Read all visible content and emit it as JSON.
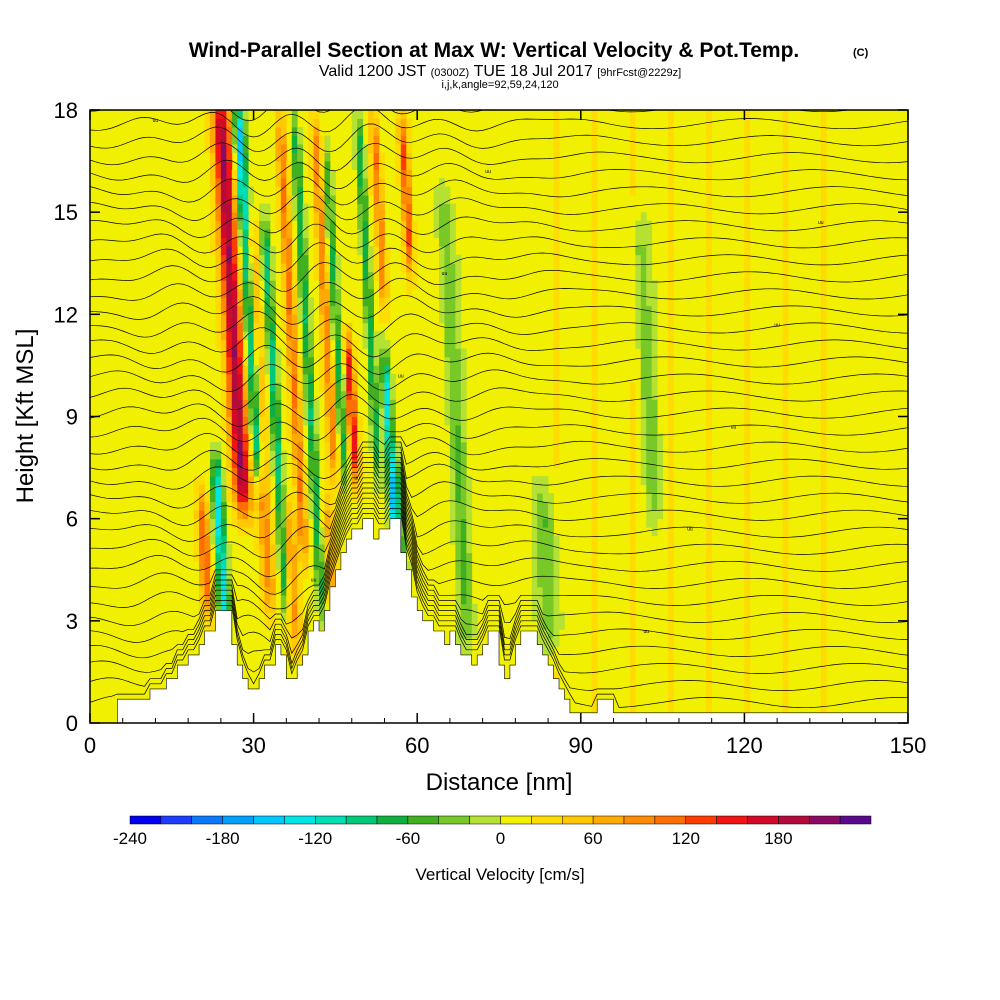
{
  "chart_data": {
    "type": "heatmap",
    "title": "Wind-Parallel Section at Max W: Vertical Velocity & Pot.Temp.",
    "title_mark": "(C)",
    "subtitle_parts": [
      "Valid 1200 JST",
      "(0300Z)",
      "TUE 18 Jul 2017",
      "[9hrFcst@2229z]"
    ],
    "subtitle2": "i,j,k,angle=92,59,24,120",
    "xlabel": "Distance [nm]",
    "ylabel": "Height [Kft MSL]",
    "xlim": [
      0,
      150
    ],
    "ylim": [
      0,
      18
    ],
    "xticks": [
      0,
      30,
      60,
      90,
      120,
      150
    ],
    "yticks": [
      0,
      3,
      6,
      9,
      12,
      15,
      18
    ],
    "colorbar": {
      "label": "Vertical Velocity [cm/s]",
      "ticks": [
        -240,
        -180,
        -120,
        -60,
        0,
        60,
        120,
        180
      ],
      "levels": [
        -240,
        -220,
        -200,
        -180,
        -160,
        -140,
        -120,
        -100,
        -80,
        -60,
        -40,
        -20,
        0,
        20,
        40,
        60,
        80,
        100,
        120,
        140,
        160,
        180,
        200,
        220
      ],
      "colors": [
        "#0000f0",
        "#1e3cff",
        "#0a78ff",
        "#00a0ff",
        "#00c8ff",
        "#00e6e6",
        "#00dcb4",
        "#00c878",
        "#10b040",
        "#40b020",
        "#78c828",
        "#b4e132",
        "#f0f000",
        "#ffdc00",
        "#ffc800",
        "#ffaa00",
        "#ff8c00",
        "#ff6e00",
        "#ff3c00",
        "#f01414",
        "#d20a28",
        "#b40a3c",
        "#8c0a64",
        "#5a0a8c"
      ]
    },
    "updrafts": [
      {
        "x": 26,
        "z_bottom": 6.0,
        "z_top": 18.5,
        "width": 1.6,
        "peak": 190
      },
      {
        "x": 21,
        "z_bottom": 3.0,
        "z_top": 7.0,
        "width": 1.0,
        "peak": 110
      },
      {
        "x": 31,
        "z_bottom": 3.0,
        "z_top": 15.0,
        "width": 1.2,
        "peak": 80
      },
      {
        "x": 37,
        "z_bottom": 4.5,
        "z_top": 18.0,
        "width": 0.9,
        "peak": 90
      },
      {
        "x": 43,
        "z_bottom": 7.0,
        "z_top": 18.0,
        "width": 0.9,
        "peak": 80
      },
      {
        "x": 48,
        "z_bottom": 7.0,
        "z_top": 11.5,
        "width": 0.8,
        "peak": 150
      },
      {
        "x": 53,
        "z_bottom": 12.0,
        "z_top": 18.0,
        "width": 0.8,
        "peak": 90
      },
      {
        "x": 58,
        "z_bottom": 13.0,
        "z_top": 18.0,
        "width": 0.8,
        "peak": 110
      },
      {
        "x": 37,
        "z_bottom": 2.0,
        "z_top": 6.5,
        "width": 1.2,
        "peak": 70
      },
      {
        "x": 44,
        "z_bottom": 3.0,
        "z_top": 7.0,
        "width": 1.2,
        "peak": 50
      }
    ],
    "downdrafts": [
      {
        "x": 24,
        "z_bottom": 2.0,
        "z_top": 8.0,
        "width": 1.0,
        "peak": -150
      },
      {
        "x": 29,
        "z_bottom": 7.0,
        "z_top": 18.5,
        "width": 1.0,
        "peak": -160
      },
      {
        "x": 34,
        "z_bottom": 3.0,
        "z_top": 15.0,
        "width": 0.8,
        "peak": -100
      },
      {
        "x": 40,
        "z_bottom": 3.0,
        "z_top": 18.0,
        "width": 0.8,
        "peak": -90
      },
      {
        "x": 45,
        "z_bottom": 7.0,
        "z_top": 17.0,
        "width": 0.8,
        "peak": -80
      },
      {
        "x": 51,
        "z_bottom": 7.0,
        "z_top": 18.0,
        "width": 0.8,
        "peak": -90
      },
      {
        "x": 55,
        "z_bottom": 5.0,
        "z_top": 11.0,
        "width": 0.8,
        "peak": -140
      },
      {
        "x": 57,
        "z_bottom": 3.0,
        "z_top": 8.0,
        "width": 1.0,
        "peak": -70
      },
      {
        "x": 67,
        "z_bottom": 2.0,
        "z_top": 16.0,
        "width": 1.5,
        "peak": -50
      },
      {
        "x": 84,
        "z_bottom": 2.0,
        "z_top": 7.0,
        "width": 2.0,
        "peak": -50
      },
      {
        "x": 102,
        "z_bottom": 6.0,
        "z_top": 15.0,
        "width": 1.5,
        "peak": -40
      }
    ],
    "terrain": [
      [
        0,
        0
      ],
      [
        5,
        0
      ],
      [
        5,
        0.7
      ],
      [
        11,
        0.7
      ],
      [
        11,
        1.0
      ],
      [
        14,
        1.0
      ],
      [
        14,
        1.3
      ],
      [
        16,
        1.3
      ],
      [
        16,
        1.7
      ],
      [
        18,
        1.7
      ],
      [
        18,
        2.0
      ],
      [
        20,
        2.0
      ],
      [
        20,
        2.3
      ],
      [
        21,
        2.3
      ],
      [
        21,
        2.7
      ],
      [
        23,
        2.7
      ],
      [
        23,
        3.3
      ],
      [
        26,
        3.3
      ],
      [
        26,
        2.3
      ],
      [
        27,
        2.3
      ],
      [
        27,
        1.7
      ],
      [
        28,
        1.7
      ],
      [
        28,
        1.3
      ],
      [
        29,
        1.3
      ],
      [
        29,
        1.0
      ],
      [
        31,
        1.0
      ],
      [
        31,
        1.3
      ],
      [
        32,
        1.3
      ],
      [
        32,
        1.7
      ],
      [
        34,
        1.7
      ],
      [
        34,
        2.3
      ],
      [
        35,
        2.3
      ],
      [
        35,
        2.0
      ],
      [
        36,
        2.0
      ],
      [
        36,
        1.3
      ],
      [
        38,
        1.3
      ],
      [
        38,
        1.7
      ],
      [
        39,
        1.7
      ],
      [
        39,
        2.0
      ],
      [
        40,
        2.0
      ],
      [
        40,
        2.7
      ],
      [
        41,
        2.7
      ],
      [
        41,
        3.0
      ],
      [
        42,
        3.0
      ],
      [
        42,
        2.7
      ],
      [
        43,
        2.7
      ],
      [
        43,
        3.3
      ],
      [
        44,
        3.3
      ],
      [
        44,
        4.0
      ],
      [
        45,
        4.0
      ],
      [
        45,
        4.5
      ],
      [
        46,
        4.5
      ],
      [
        46,
        5.0
      ],
      [
        47,
        5.0
      ],
      [
        47,
        5.4
      ],
      [
        48,
        5.4
      ],
      [
        48,
        5.7
      ],
      [
        50,
        5.7
      ],
      [
        50,
        6.0
      ],
      [
        52,
        6.0
      ],
      [
        52,
        5.4
      ],
      [
        53,
        5.4
      ],
      [
        53,
        5.7
      ],
      [
        55,
        5.7
      ],
      [
        55,
        6.0
      ],
      [
        57,
        6.0
      ],
      [
        57,
        5.0
      ],
      [
        58,
        5.0
      ],
      [
        58,
        4.5
      ],
      [
        59,
        4.5
      ],
      [
        59,
        3.7
      ],
      [
        60,
        3.7
      ],
      [
        60,
        3.3
      ],
      [
        61,
        3.3
      ],
      [
        61,
        3.0
      ],
      [
        63,
        3.0
      ],
      [
        63,
        2.7
      ],
      [
        65,
        2.7
      ],
      [
        65,
        2.3
      ],
      [
        66,
        2.3
      ],
      [
        66,
        2.7
      ],
      [
        67,
        2.7
      ],
      [
        67,
        2.3
      ],
      [
        68,
        2.3
      ],
      [
        68,
        2.0
      ],
      [
        70,
        2.0
      ],
      [
        70,
        1.7
      ],
      [
        71,
        1.7
      ],
      [
        71,
        2.0
      ],
      [
        72,
        2.0
      ],
      [
        72,
        2.3
      ],
      [
        73,
        2.3
      ],
      [
        73,
        2.7
      ],
      [
        75,
        2.7
      ],
      [
        75,
        1.7
      ],
      [
        76,
        1.7
      ],
      [
        76,
        1.3
      ],
      [
        77,
        1.3
      ],
      [
        77,
        1.7
      ],
      [
        78,
        1.7
      ],
      [
        78,
        2.3
      ],
      [
        79,
        2.3
      ],
      [
        79,
        2.7
      ],
      [
        82,
        2.7
      ],
      [
        82,
        2.3
      ],
      [
        83,
        2.3
      ],
      [
        83,
        2.0
      ],
      [
        84,
        2.0
      ],
      [
        84,
        1.7
      ],
      [
        85,
        1.7
      ],
      [
        85,
        1.3
      ],
      [
        86,
        1.3
      ],
      [
        86,
        1.0
      ],
      [
        87,
        1.0
      ],
      [
        87,
        0.7
      ],
      [
        88,
        0.7
      ],
      [
        88,
        0.3
      ],
      [
        93,
        0.3
      ],
      [
        93,
        0.7
      ],
      [
        96,
        0.7
      ],
      [
        96,
        0.3
      ],
      [
        150,
        0.3
      ],
      [
        150,
        0
      ]
    ],
    "theta_label": "uu"
  }
}
